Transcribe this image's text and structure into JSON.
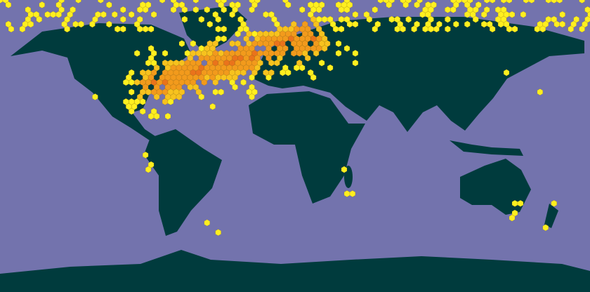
{
  "map": {
    "ocean_color": "#7373ad",
    "land_color": "#003b3d",
    "hex_colors": [
      "#ffef1f",
      "#f7c21e",
      "#f29a1c",
      "#ea731b"
    ]
  }
}
